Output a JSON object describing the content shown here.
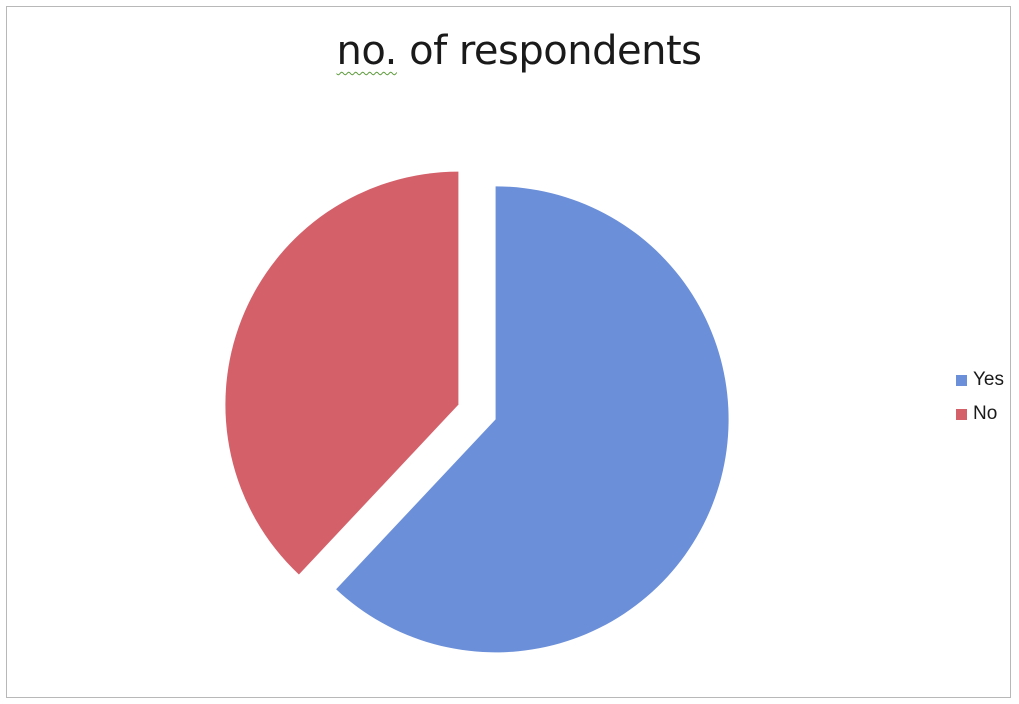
{
  "chart_data": {
    "type": "pie",
    "title_word_1": "no.",
    "title_word_2": "of respondents",
    "categories": [
      "Yes",
      "No"
    ],
    "values": [
      62,
      38
    ],
    "colors": [
      "#6B8FD9",
      "#D4606A"
    ],
    "exploded_slices": [
      "Yes",
      "No"
    ],
    "legend_position": "right"
  }
}
